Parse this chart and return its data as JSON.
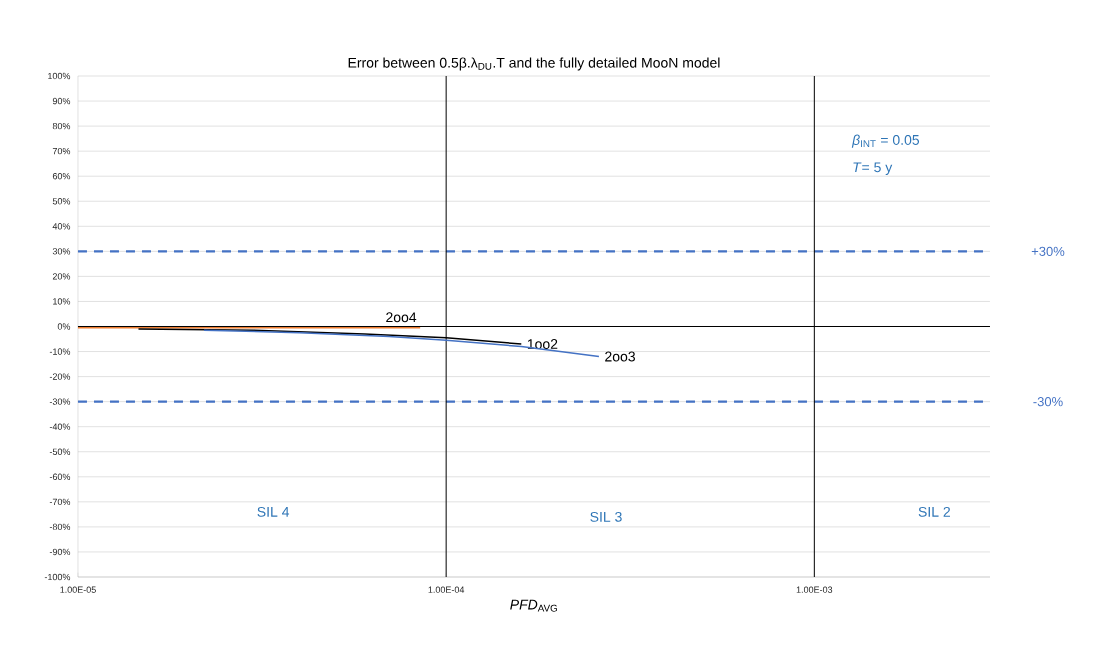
{
  "chart_data": {
    "type": "line",
    "title": "Error between 0.5β.λ$_{DU}$.T and the fully detailed MooN  model",
    "xlabel": "*PFD*$_{AVG}$",
    "log": "x",
    "grid": "y",
    "line_style": "solid",
    "marker": "none",
    "xlim": [
      1e-05,
      0.003
    ],
    "xticks": [
      {
        "value": 1e-05,
        "label": "1.00E-05"
      },
      {
        "value": 0.0001,
        "label": "1.00E-04"
      },
      {
        "value": 0.001,
        "label": "1.00E-03"
      }
    ],
    "ylim": [
      -100,
      100
    ],
    "yticks": [
      {
        "value": -100,
        "label": "-100%"
      },
      {
        "value": -90,
        "label": "-90%"
      },
      {
        "value": -80,
        "label": "-80%"
      },
      {
        "value": -70,
        "label": "-70%"
      },
      {
        "value": -60,
        "label": "-60%"
      },
      {
        "value": -50,
        "label": "-50%"
      },
      {
        "value": -40,
        "label": "-40%"
      },
      {
        "value": -30,
        "label": "-30%"
      },
      {
        "value": -20,
        "label": "-20%"
      },
      {
        "value": -10,
        "label": "-10%"
      },
      {
        "value": 0,
        "label": "0%"
      },
      {
        "value": 10,
        "label": "10%"
      },
      {
        "value": 20,
        "label": "20%"
      },
      {
        "value": 30,
        "label": "30%"
      },
      {
        "value": 40,
        "label": "40%"
      },
      {
        "value": 50,
        "label": "50%"
      },
      {
        "value": 60,
        "label": "60%"
      },
      {
        "value": 70,
        "label": "70%"
      },
      {
        "value": 80,
        "label": "80%"
      },
      {
        "value": 90,
        "label": "90%"
      },
      {
        "value": 100,
        "label": "100%"
      }
    ],
    "series": [
      {
        "name": "2oo4",
        "color": "#ed7d31",
        "x": [
          1e-05,
          3e-05,
          8.5e-05
        ],
        "values": [
          -0.5,
          -0.5,
          -0.5
        ]
      },
      {
        "name": "1oo2",
        "color": "#000000",
        "x": [
          1.46e-05,
          3e-05,
          6e-05,
          0.0001,
          0.00016
        ],
        "values": [
          -1,
          -1.5,
          -3,
          -4.5,
          -7
        ]
      },
      {
        "name": "2oo3",
        "color": "#4472c4",
        "x": [
          2.2e-05,
          4e-05,
          7e-05,
          0.0001,
          0.00016,
          0.00026
        ],
        "values": [
          -1.5,
          -2.5,
          -4,
          -5.5,
          -8,
          -12
        ]
      }
    ],
    "ref_lines": [
      {
        "axis": "y",
        "value": 30,
        "label": "+30%",
        "color": "#4472c4",
        "line_style": "dashed"
      },
      {
        "axis": "y",
        "value": -30,
        "label": "-30%",
        "color": "#4472c4",
        "line_style": "dashed"
      },
      {
        "axis": "y",
        "value": 0,
        "color": "#000000",
        "line_style": "solid"
      },
      {
        "axis": "x",
        "value": 0.0001,
        "color": "#000000",
        "line_style": "solid"
      },
      {
        "axis": "x",
        "value": 0.001,
        "color": "#000000",
        "line_style": "solid"
      }
    ],
    "annotations": [
      "SIL 4",
      "SIL 3",
      "SIL 2",
      "*β*$_{INT}$ = 0.05",
      "*T*= 5 y"
    ]
  }
}
